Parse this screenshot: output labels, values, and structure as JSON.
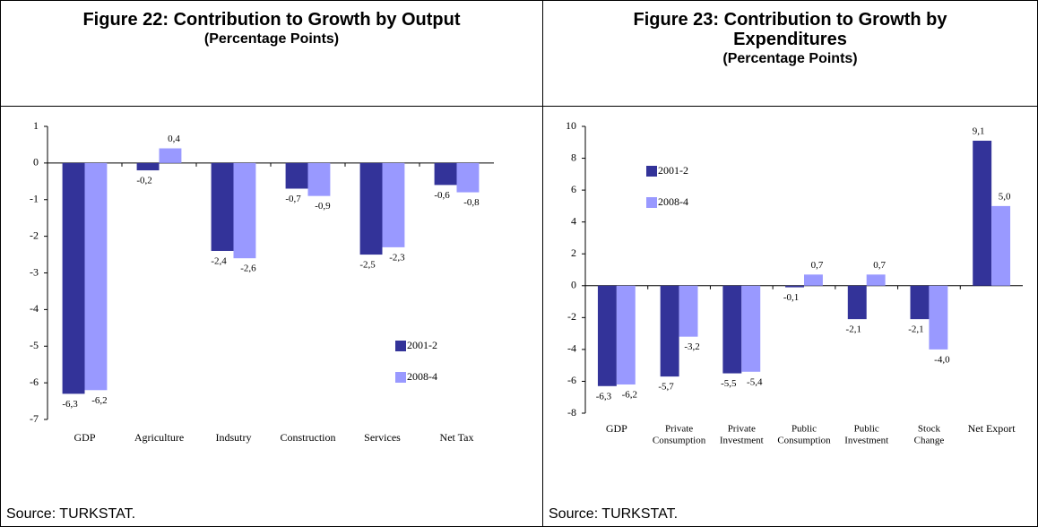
{
  "chart_data": [
    {
      "type": "bar",
      "title": "Figure 22: Contribution to Growth by Output",
      "subtitle": "(Percentage Points)",
      "categories": [
        [
          "GDP"
        ],
        [
          "Agriculture"
        ],
        [
          "Indsutry"
        ],
        [
          "Construction"
        ],
        [
          "Services"
        ],
        [
          "Net Tax"
        ]
      ],
      "series": [
        {
          "name": "2001-2",
          "color": "#333399",
          "values": [
            -6.3,
            -0.2,
            -2.4,
            -0.7,
            -2.5,
            -0.6
          ],
          "value_labels": [
            "-6,3",
            "-0,2",
            "-2,4",
            "-0,7",
            "-2,5",
            "-0,6"
          ]
        },
        {
          "name": "2008-4",
          "color": "#9999ff",
          "values": [
            -6.2,
            0.4,
            -2.6,
            -0.9,
            -2.3,
            -0.8
          ],
          "value_labels": [
            "-6,2",
            "0,4",
            "-2,6",
            "-0,9",
            "-2,3",
            "-0,8"
          ]
        }
      ],
      "ylim": [
        -7,
        1
      ],
      "yticks": [
        -7,
        -6,
        -5,
        -4,
        -3,
        -2,
        -1,
        0,
        1
      ],
      "legend": "lower right",
      "source": "Source: TURKSTAT."
    },
    {
      "type": "bar",
      "title": "Figure 23: Contribution to Growth by Expenditures",
      "subtitle": "(Percentage Points)",
      "categories": [
        [
          "GDP"
        ],
        [
          "Private",
          "Consumption"
        ],
        [
          "Private",
          "Investment"
        ],
        [
          "Public",
          "Consumption"
        ],
        [
          "Public",
          "Investment"
        ],
        [
          "Stock",
          "Change"
        ],
        [
          "Net Export"
        ]
      ],
      "series": [
        {
          "name": "2001-2",
          "color": "#333399",
          "values": [
            -6.3,
            -5.7,
            -5.5,
            -0.1,
            -2.1,
            -2.1,
            9.1
          ],
          "value_labels": [
            "-6,3",
            "-5,7",
            "-5,5",
            "-0,1",
            "-2,1",
            "-2,1",
            "9,1"
          ]
        },
        {
          "name": "2008-4",
          "color": "#9999ff",
          "values": [
            -6.2,
            -3.2,
            -5.4,
            0.7,
            0.7,
            -4.0,
            5.0
          ],
          "value_labels": [
            "-6,2",
            "-3,2",
            "-5,4",
            "0,7",
            "0,7",
            "-4,0",
            "5,0"
          ]
        }
      ],
      "ylim": [
        -8,
        10
      ],
      "yticks": [
        -8,
        -6,
        -4,
        -2,
        0,
        2,
        4,
        6,
        8,
        10
      ],
      "legend": "upper left",
      "source": "Source: TURKSTAT."
    }
  ]
}
